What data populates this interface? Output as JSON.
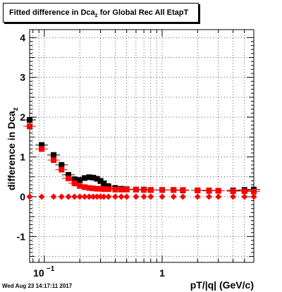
{
  "title": {
    "pre": "Fitted difference in Dca",
    "sub": "z",
    "post": " for Global Rec All EtapT"
  },
  "ylabel": {
    "pre": "difference in Dca",
    "sub": "z"
  },
  "xlabel": "pT/|q| (GeV/c)",
  "timestamp": "Wed Aug 23 14:17:11 2017",
  "chart_data": {
    "type": "scatter",
    "xscale": "log",
    "xlim": [
      0.075,
      6.0
    ],
    "ylim": [
      -1.65,
      4.2
    ],
    "grid": true,
    "x_tick_labels": [
      {
        "value": 0.1,
        "base": "10",
        "exp": "−1"
      },
      {
        "value": 1,
        "text": "1"
      }
    ],
    "y_ticks": [
      -1,
      0,
      1,
      2,
      3,
      4
    ],
    "series": [
      {
        "color": "#000000",
        "marker": "square",
        "x": [
          0.075,
          0.095,
          0.12,
          0.14,
          0.16,
          0.18,
          0.2,
          0.22,
          0.24,
          0.26,
          0.28,
          0.3,
          0.32,
          0.35,
          0.4,
          0.45,
          0.5,
          0.6,
          0.7,
          0.8,
          1.0,
          1.25,
          1.5,
          2.0,
          2.5,
          3.0,
          4.0,
          5.0,
          6.0
        ],
        "y": [
          1.93,
          1.3,
          1.05,
          0.8,
          0.55,
          0.44,
          0.42,
          0.47,
          0.49,
          0.48,
          0.45,
          0.4,
          0.33,
          0.26,
          0.22,
          0.2,
          0.19,
          0.18,
          0.18,
          0.17,
          0.17,
          0.17,
          0.16,
          0.16,
          0.15,
          0.15,
          0.16,
          0.17,
          0.18
        ]
      },
      {
        "color": "#ff0000",
        "marker": "square",
        "x": [
          0.075,
          0.095,
          0.12,
          0.14,
          0.16,
          0.18,
          0.2,
          0.22,
          0.24,
          0.26,
          0.28,
          0.3,
          0.32,
          0.35,
          0.4,
          0.45,
          0.5,
          0.6,
          0.7,
          0.8,
          1.0,
          1.25,
          1.5,
          2.0,
          2.5,
          3.0,
          4.0,
          5.0,
          6.0
        ],
        "y": [
          1.77,
          1.2,
          0.92,
          0.68,
          0.46,
          0.34,
          0.27,
          0.24,
          0.22,
          0.21,
          0.2,
          0.2,
          0.19,
          0.19,
          0.18,
          0.18,
          0.18,
          0.18,
          0.17,
          0.17,
          0.17,
          0.17,
          0.17,
          0.16,
          0.16,
          0.15,
          0.14,
          0.14,
          0.13
        ]
      },
      {
        "color": "#ff0000",
        "marker": "diamond",
        "x": [
          0.075,
          0.095,
          0.12,
          0.14,
          0.16,
          0.18,
          0.2,
          0.22,
          0.24,
          0.26,
          0.28,
          0.3,
          0.32,
          0.35,
          0.4,
          0.45,
          0.5,
          0.6,
          0.7,
          0.8,
          1.0,
          1.25,
          1.5,
          2.0,
          2.5,
          3.0,
          4.0,
          5.0,
          6.0
        ],
        "y": [
          0.0,
          0.0,
          0.0,
          0.0,
          0.0,
          0.0,
          0.0,
          0.0,
          0.0,
          0.0,
          0.0,
          0.0,
          0.0,
          0.0,
          0.0,
          0.0,
          0.0,
          0.0,
          0.0,
          0.0,
          0.0,
          0.0,
          0.0,
          0.0,
          0.0,
          0.0,
          0.0,
          0.0,
          0.0
        ]
      }
    ]
  }
}
